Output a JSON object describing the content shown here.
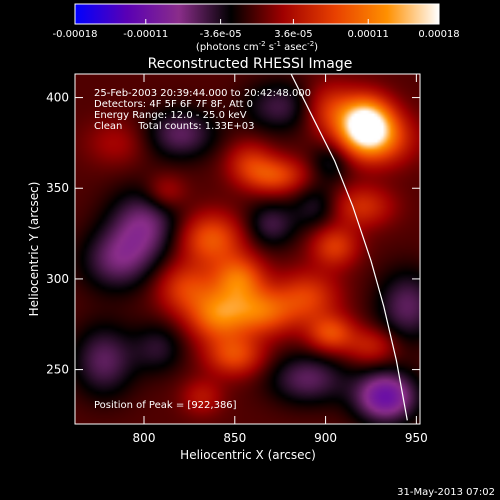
{
  "chart_data": {
    "type": "heatmap",
    "title": "Reconstructed RHESSI Image",
    "xlabel": "Heliocentric X (arcsec)",
    "ylabel": "Heliocentric Y (arcsec)",
    "xlim": [
      762,
      952
    ],
    "ylim": [
      220,
      413
    ],
    "x_ticks": [
      800,
      850,
      900,
      950
    ],
    "y_ticks": [
      250,
      300,
      350,
      400
    ],
    "colorbar": {
      "range": [
        -0.00018,
        0.00018
      ],
      "tick_values": [
        -0.00018,
        -0.00011,
        -3.6e-05,
        3.6e-05,
        0.00011,
        0.00018
      ],
      "tick_labels": [
        "-0.00018",
        "-0.00011",
        "-3.6e-05",
        "3.6e-05",
        "0.00011",
        "0.00018"
      ],
      "unit_label": "(photons cm",
      "unit_sup1": "-2",
      "unit_mid": " s",
      "unit_sup2": "-1",
      "unit_end": " asec",
      "unit_sup3": "-2",
      "unit_close": ")",
      "stops": [
        "#0000ff",
        "#5a00b4",
        "#8a2d8a",
        "#000000",
        "#a00000",
        "#e84000",
        "#ff9000",
        "#ffffff"
      ]
    },
    "annotations": {
      "time_range": "25-Feb-2003 20:39:44.000 to 20:42:48.000",
      "detectors": "Detectors: 4F 5F 6F 7F 8F, Att 0",
      "energy": "Energy Range: 12.0 - 25.0 keV",
      "method": "Clean     Total counts: 1.33E+03",
      "peak": "Position of Peak = [922,386]"
    },
    "peak": {
      "x": 922,
      "y": 386
    },
    "limb_curve": [
      [
        881,
        413
      ],
      [
        895,
        385
      ],
      [
        905,
        365
      ],
      [
        915,
        340
      ],
      [
        925,
        310
      ],
      [
        932,
        285
      ],
      [
        939,
        255
      ],
      [
        945,
        222
      ]
    ],
    "image_features": [
      {
        "x": 922,
        "y": 386,
        "sx": 10,
        "sy": 10,
        "a": 0.00018
      },
      {
        "x": 928,
        "y": 377,
        "sx": 14,
        "sy": 10,
        "a": 9e-05
      },
      {
        "x": 902,
        "y": 394,
        "sx": 10,
        "sy": 10,
        "a": 6e-05
      },
      {
        "x": 872,
        "y": 357,
        "sx": 12,
        "sy": 7,
        "a": 8e-05
      },
      {
        "x": 858,
        "y": 365,
        "sx": 9,
        "sy": 8,
        "a": 5e-05
      },
      {
        "x": 837,
        "y": 322,
        "sx": 12,
        "sy": 10,
        "a": 9e-05
      },
      {
        "x": 852,
        "y": 300,
        "sx": 10,
        "sy": 9,
        "a": 0.0001
      },
      {
        "x": 823,
        "y": 295,
        "sx": 11,
        "sy": 10,
        "a": 7e-05
      },
      {
        "x": 840,
        "y": 280,
        "sx": 11,
        "sy": 10,
        "a": 0.0001
      },
      {
        "x": 864,
        "y": 282,
        "sx": 13,
        "sy": 9,
        "a": 0.0001
      },
      {
        "x": 890,
        "y": 290,
        "sx": 12,
        "sy": 10,
        "a": 7e-05
      },
      {
        "x": 850,
        "y": 258,
        "sx": 11,
        "sy": 8,
        "a": 8e-05
      },
      {
        "x": 905,
        "y": 318,
        "sx": 9,
        "sy": 8,
        "a": 7e-05
      },
      {
        "x": 903,
        "y": 270,
        "sx": 9,
        "sy": 7,
        "a": 8e-05
      },
      {
        "x": 920,
        "y": 340,
        "sx": 12,
        "sy": 8,
        "a": 6e-05
      },
      {
        "x": 925,
        "y": 263,
        "sx": 10,
        "sy": 7,
        "a": 5e-05
      },
      {
        "x": 812,
        "y": 348,
        "sx": 8,
        "sy": 7,
        "a": 4e-05
      },
      {
        "x": 832,
        "y": 235,
        "sx": 8,
        "sy": 7,
        "a": 4e-05
      },
      {
        "x": 785,
        "y": 375,
        "sx": 12,
        "sy": 9,
        "a": 3e-05
      },
      {
        "x": 800,
        "y": 330,
        "sx": 14,
        "sy": 14,
        "a": -7e-05
      },
      {
        "x": 820,
        "y": 380,
        "sx": 14,
        "sy": 10,
        "a": -6e-05
      },
      {
        "x": 785,
        "y": 310,
        "sx": 14,
        "sy": 12,
        "a": -6e-05
      },
      {
        "x": 778,
        "y": 255,
        "sx": 12,
        "sy": 14,
        "a": -6e-05
      },
      {
        "x": 808,
        "y": 262,
        "sx": 10,
        "sy": 10,
        "a": -4e-05
      },
      {
        "x": 870,
        "y": 330,
        "sx": 10,
        "sy": 9,
        "a": -5e-05
      },
      {
        "x": 895,
        "y": 340,
        "sx": 9,
        "sy": 9,
        "a": -4e-05
      },
      {
        "x": 890,
        "y": 245,
        "sx": 15,
        "sy": 10,
        "a": -6e-05
      },
      {
        "x": 933,
        "y": 235,
        "sx": 12,
        "sy": 10,
        "a": -0.00011
      },
      {
        "x": 945,
        "y": 285,
        "sx": 12,
        "sy": 14,
        "a": -6e-05
      },
      {
        "x": 875,
        "y": 395,
        "sx": 14,
        "sy": 10,
        "a": -5e-05
      },
      {
        "x": 903,
        "y": 365,
        "sx": 8,
        "sy": 8,
        "a": -4e-05
      }
    ]
  },
  "footer": {
    "timestamp": "31-May-2013 07:02"
  }
}
